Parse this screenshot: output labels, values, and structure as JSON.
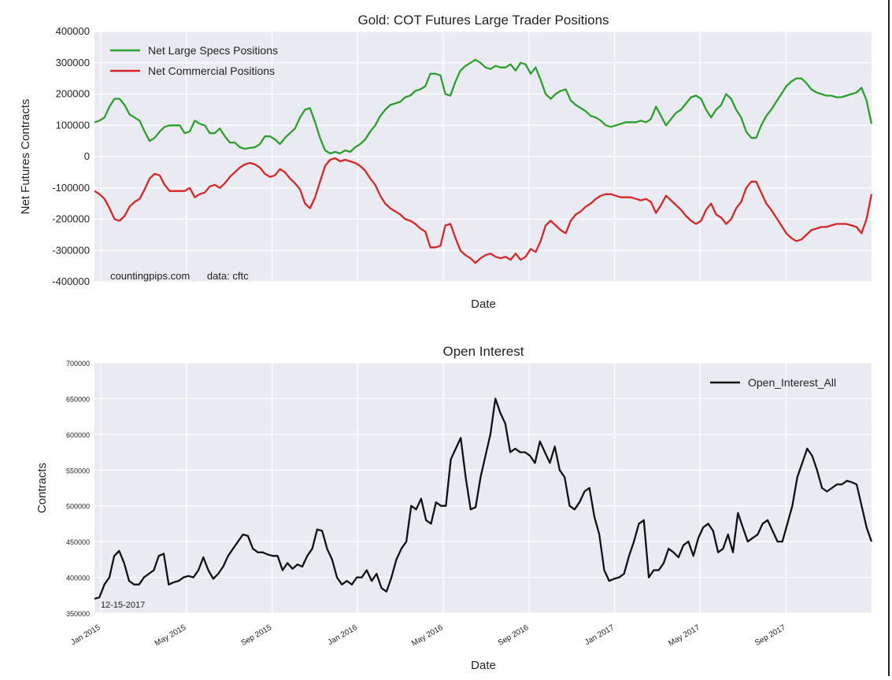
{
  "chart_data": [
    {
      "type": "line",
      "title": "Gold: COT Futures Large Trader Positions",
      "xlabel": "Date",
      "ylabel": "Net Futures Contracts",
      "ylim": [
        -400000,
        400000
      ],
      "yticks": [
        "400000",
        "300000",
        "200000",
        "100000",
        "0",
        "-100000",
        "-200000",
        "-300000",
        "-400000"
      ],
      "grid": true,
      "legend": "top-left",
      "source_note": "countingpips.com      data: cftc",
      "series": [
        {
          "name": "Net Large Specs Positions",
          "color": "#2ca02c",
          "values": [
            110000,
            115000,
            125000,
            160000,
            185000,
            185000,
            165000,
            135000,
            125000,
            115000,
            80000,
            50000,
            60000,
            80000,
            95000,
            100000,
            100000,
            100000,
            75000,
            80000,
            115000,
            105000,
            100000,
            75000,
            75000,
            90000,
            65000,
            45000,
            45000,
            30000,
            25000,
            28000,
            30000,
            40000,
            65000,
            65000,
            55000,
            40000,
            60000,
            75000,
            90000,
            125000,
            150000,
            155000,
            110000,
            60000,
            20000,
            10000,
            15000,
            10000,
            20000,
            15000,
            30000,
            40000,
            55000,
            80000,
            100000,
            130000,
            150000,
            165000,
            170000,
            175000,
            190000,
            195000,
            210000,
            215000,
            225000,
            265000,
            265000,
            260000,
            200000,
            195000,
            240000,
            275000,
            290000,
            300000,
            310000,
            300000,
            285000,
            280000,
            290000,
            285000,
            285000,
            295000,
            275000,
            300000,
            295000,
            265000,
            285000,
            245000,
            200000,
            185000,
            200000,
            210000,
            215000,
            180000,
            165000,
            155000,
            145000,
            130000,
            125000,
            115000,
            100000,
            95000,
            100000,
            105000,
            110000,
            110000,
            110000,
            115000,
            110000,
            120000,
            160000,
            130000,
            100000,
            120000,
            140000,
            150000,
            170000,
            190000,
            195000,
            185000,
            150000,
            125000,
            150000,
            165000,
            200000,
            185000,
            150000,
            125000,
            80000,
            60000,
            60000,
            100000,
            130000,
            150000,
            175000,
            200000,
            225000,
            240000,
            250000,
            250000,
            235000,
            215000,
            205000,
            200000,
            195000,
            195000,
            190000,
            190000,
            195000,
            200000,
            205000,
            220000,
            180000,
            105000
          ]
        },
        {
          "name": "Net Commercial Positions",
          "color": "#d62728",
          "values": [
            -110000,
            -120000,
            -135000,
            -165000,
            -200000,
            -205000,
            -190000,
            -160000,
            -145000,
            -135000,
            -105000,
            -70000,
            -55000,
            -60000,
            -90000,
            -110000,
            -110000,
            -110000,
            -110000,
            -100000,
            -130000,
            -120000,
            -115000,
            -95000,
            -90000,
            -100000,
            -85000,
            -65000,
            -50000,
            -35000,
            -25000,
            -20000,
            -25000,
            -35000,
            -55000,
            -65000,
            -60000,
            -40000,
            -50000,
            -70000,
            -85000,
            -105000,
            -150000,
            -165000,
            -130000,
            -80000,
            -30000,
            -10000,
            -5000,
            -15000,
            -10000,
            -15000,
            -20000,
            -30000,
            -45000,
            -70000,
            -90000,
            -125000,
            -150000,
            -165000,
            -175000,
            -185000,
            -200000,
            -205000,
            -215000,
            -230000,
            -240000,
            -290000,
            -290000,
            -285000,
            -220000,
            -215000,
            -260000,
            -300000,
            -315000,
            -325000,
            -340000,
            -325000,
            -315000,
            -310000,
            -320000,
            -325000,
            -320000,
            -330000,
            -310000,
            -330000,
            -320000,
            -295000,
            -305000,
            -270000,
            -220000,
            -205000,
            -220000,
            -235000,
            -245000,
            -205000,
            -185000,
            -175000,
            -160000,
            -150000,
            -135000,
            -125000,
            -120000,
            -120000,
            -125000,
            -130000,
            -130000,
            -130000,
            -135000,
            -140000,
            -135000,
            -145000,
            -180000,
            -155000,
            -125000,
            -140000,
            -155000,
            -170000,
            -190000,
            -205000,
            -215000,
            -205000,
            -170000,
            -150000,
            -185000,
            -195000,
            -215000,
            -200000,
            -165000,
            -145000,
            -100000,
            -80000,
            -80000,
            -115000,
            -150000,
            -170000,
            -195000,
            -220000,
            -245000,
            -260000,
            -270000,
            -265000,
            -250000,
            -235000,
            -230000,
            -225000,
            -225000,
            -220000,
            -215000,
            -215000,
            -215000,
            -220000,
            -225000,
            -245000,
            -200000,
            -120000
          ]
        }
      ]
    },
    {
      "type": "line",
      "title": "Open Interest",
      "xlabel": "Date",
      "ylabel": "Contracts",
      "ylim": [
        350000,
        700000
      ],
      "yticks": [
        "700000",
        "650000",
        "600000",
        "550000",
        "500000",
        "450000",
        "400000",
        "350000"
      ],
      "xticks": [
        "Jan 2015",
        "May 2015",
        "Sep 2015",
        "Jan 2016",
        "May 2016",
        "Sep 2016",
        "Jan 2017",
        "May 2017",
        "Sep 2017"
      ],
      "grid": true,
      "legend": "top-right",
      "date_note": "12-15-2017",
      "series": [
        {
          "name": "Open_Interest_All",
          "color": "#111111",
          "values": [
            370000,
            372000,
            390000,
            400000,
            430000,
            437000,
            420000,
            395000,
            390000,
            390000,
            400000,
            405000,
            410000,
            430000,
            433000,
            390000,
            393000,
            395000,
            400000,
            402000,
            400000,
            410000,
            428000,
            410000,
            398000,
            405000,
            415000,
            430000,
            440000,
            450000,
            460000,
            458000,
            440000,
            435000,
            435000,
            432000,
            430000,
            430000,
            410000,
            420000,
            412000,
            418000,
            415000,
            430000,
            440000,
            467000,
            465000,
            440000,
            425000,
            400000,
            390000,
            395000,
            390000,
            400000,
            400000,
            410000,
            395000,
            405000,
            385000,
            380000,
            400000,
            425000,
            440000,
            450000,
            500000,
            495000,
            510000,
            480000,
            475000,
            505000,
            500000,
            500000,
            565000,
            580000,
            595000,
            540000,
            495000,
            498000,
            540000,
            570000,
            600000,
            650000,
            630000,
            615000,
            575000,
            580000,
            575000,
            575000,
            570000,
            560000,
            590000,
            575000,
            560000,
            583000,
            550000,
            540000,
            500000,
            495000,
            505000,
            520000,
            525000,
            485000,
            460000,
            410000,
            395000,
            398000,
            400000,
            405000,
            430000,
            450000,
            475000,
            480000,
            400000,
            410000,
            410000,
            420000,
            440000,
            435000,
            428000,
            445000,
            450000,
            430000,
            455000,
            470000,
            475000,
            465000,
            435000,
            440000,
            460000,
            435000,
            490000,
            470000,
            450000,
            455000,
            460000,
            475000,
            480000,
            465000,
            450000,
            450000,
            475000,
            500000,
            540000,
            560000,
            580000,
            570000,
            550000,
            525000,
            520000,
            525000,
            530000,
            530000,
            535000,
            533000,
            530000,
            500000,
            470000,
            450000
          ]
        }
      ]
    }
  ]
}
